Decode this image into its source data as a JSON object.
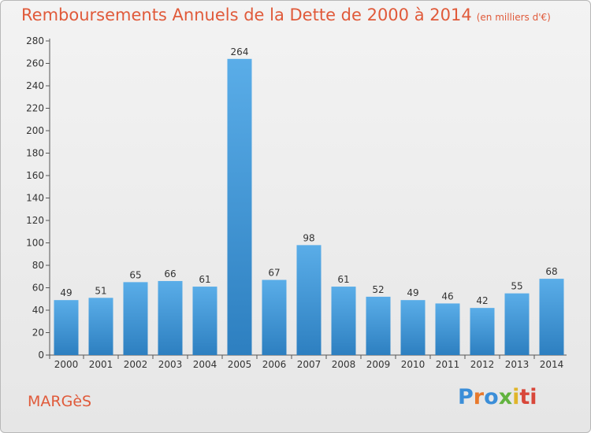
{
  "title": "Remboursements Annuels de la Dette de 2000 à 2014",
  "title_unit": "(en milliers d'€)",
  "commune": "MARGèS",
  "logo": {
    "text": "Proxiti",
    "letters": [
      "P",
      "r",
      "o",
      "x",
      "i",
      "ti"
    ]
  },
  "colors": {
    "bar_light": "#5aade8",
    "bar_dark": "#2d7fc0",
    "title": "#e05a3a"
  },
  "chart_data": {
    "type": "bar",
    "title": "Remboursements Annuels de la Dette de 2000 à 2014",
    "xlabel": "",
    "ylabel": "",
    "categories": [
      "2000",
      "2001",
      "2002",
      "2003",
      "2004",
      "2005",
      "2006",
      "2007",
      "2008",
      "2009",
      "2010",
      "2011",
      "2012",
      "2013",
      "2014"
    ],
    "values": [
      49,
      51,
      65,
      66,
      61,
      264,
      67,
      98,
      61,
      52,
      49,
      46,
      42,
      55,
      68
    ],
    "ylim": [
      0,
      280
    ],
    "yticks": [
      0,
      20,
      40,
      60,
      80,
      100,
      120,
      140,
      160,
      180,
      200,
      220,
      240,
      260,
      280
    ],
    "grid": false,
    "data_labels": true
  }
}
